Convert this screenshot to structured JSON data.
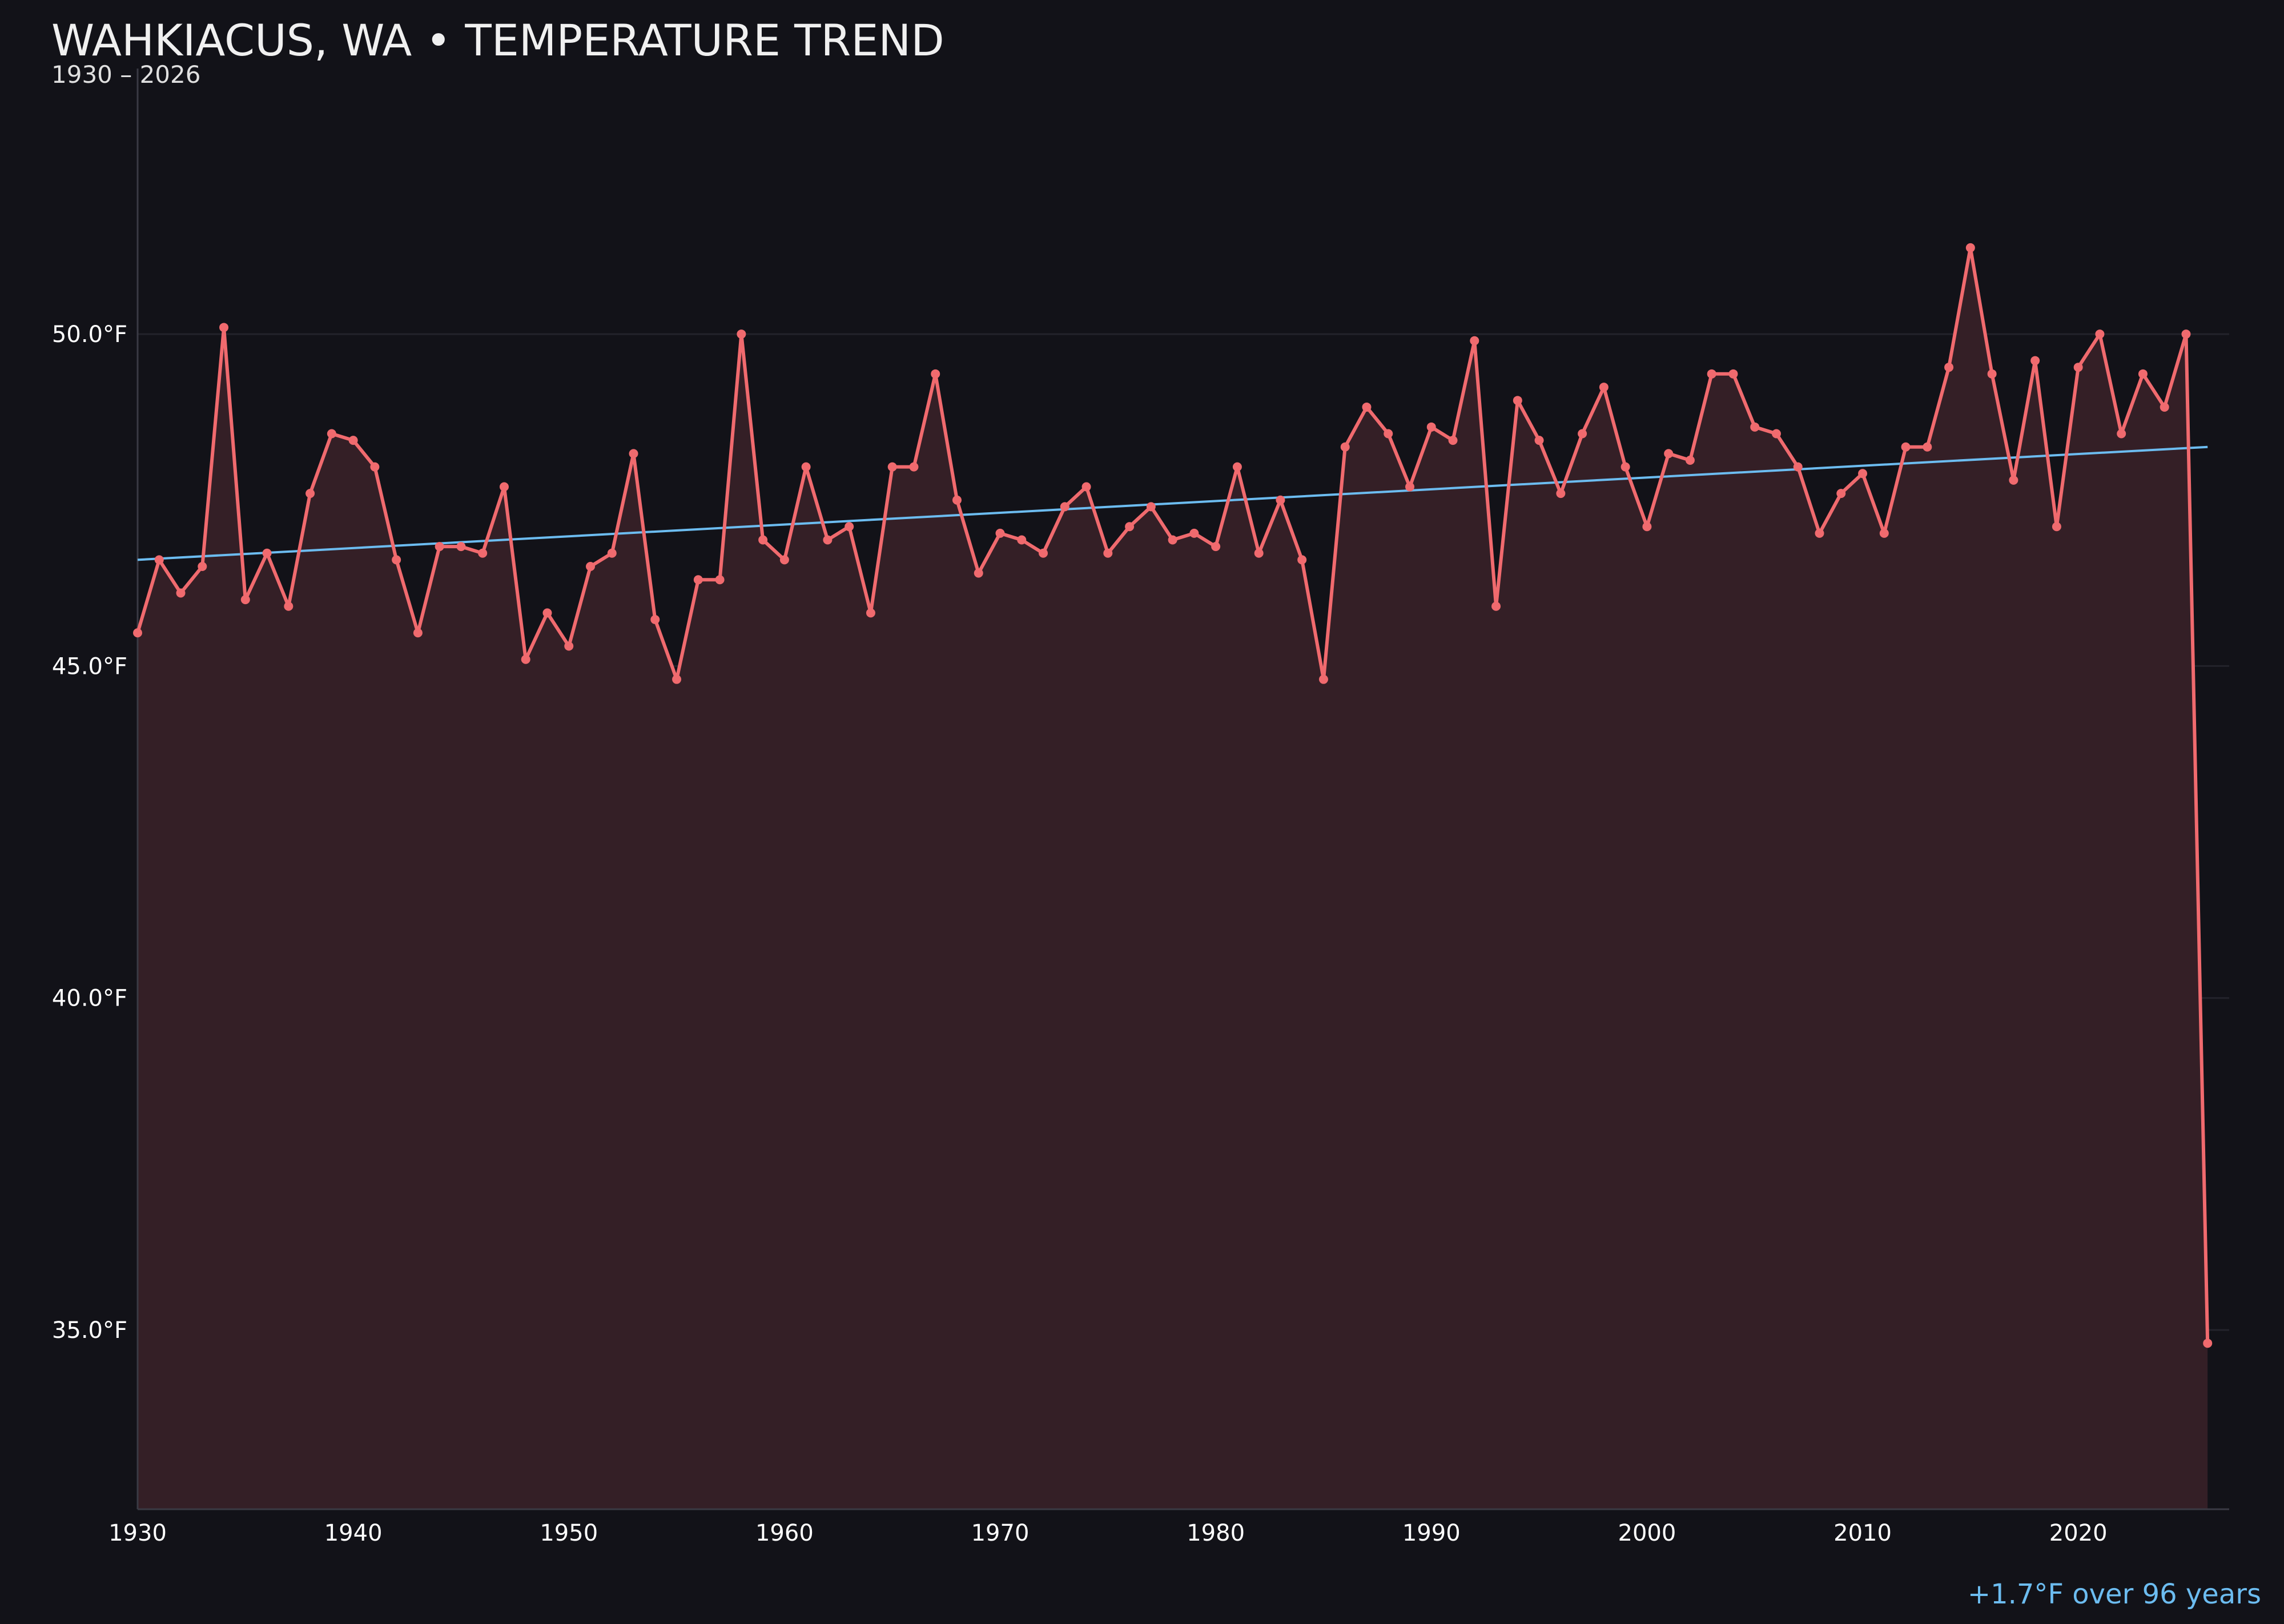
{
  "header": {
    "title": "WAHKIACUS, WA • TEMPERATURE TREND",
    "subtitle": "1930 – 2026"
  },
  "footer": {
    "trend_note": "+1.7°F over 96 years"
  },
  "colors": {
    "background": "#121218",
    "series_line": "#f06a6e",
    "area_fill": "#341f26",
    "trend_line": "#6cbcf0",
    "grid": "#23232b",
    "axis": "#3a3a44"
  },
  "chart_data": {
    "type": "line",
    "title": "WAHKIACUS, WA • TEMPERATURE TREND",
    "subtitle": "1930 – 2026",
    "xlabel": "",
    "ylabel": "",
    "xlim": [
      1930,
      2027
    ],
    "ylim": [
      32.3,
      54.0
    ],
    "x_ticks": [
      1930,
      1940,
      1950,
      1960,
      1970,
      1980,
      1990,
      2000,
      2010,
      2020
    ],
    "y_ticks": [
      {
        "value": 35,
        "label": "35.0°F"
      },
      {
        "value": 40,
        "label": "40.0°F"
      },
      {
        "value": 45,
        "label": "45.0°F"
      },
      {
        "value": 50,
        "label": "50.0°F"
      }
    ],
    "grid": "horizontal",
    "area_fill": true,
    "series": [
      {
        "x": [
          1930,
          1931,
          1932,
          1933,
          1934,
          1935,
          1936,
          1937,
          1938,
          1939,
          1940,
          1941,
          1942,
          1943,
          1944,
          1945,
          1946,
          1947,
          1948,
          1949,
          1950,
          1951,
          1952,
          1953,
          1954,
          1955,
          1956,
          1957,
          1958,
          1959,
          1960,
          1961,
          1962,
          1963,
          1964,
          1965,
          1966,
          1967,
          1968,
          1969,
          1970,
          1971,
          1972,
          1973,
          1974,
          1975,
          1976,
          1977,
          1978,
          1979,
          1980,
          1981,
          1982,
          1983,
          1984,
          1985,
          1986,
          1987,
          1988,
          1989,
          1990,
          1991,
          1992,
          1993,
          1994,
          1995,
          1996,
          1997,
          1998,
          1999,
          2000,
          2001,
          2002,
          2003,
          2004,
          2005,
          2006,
          2007,
          2008,
          2009,
          2010,
          2011,
          2012,
          2013,
          2014,
          2015,
          2016,
          2017,
          2018,
          2019,
          2020,
          2021,
          2022,
          2023,
          2024,
          2025,
          2026
        ],
        "values": [
          45.5,
          46.6,
          46.1,
          46.5,
          50.1,
          46.0,
          46.7,
          45.9,
          47.6,
          48.5,
          48.4,
          48.0,
          46.6,
          45.5,
          46.8,
          46.8,
          46.7,
          47.7,
          45.1,
          45.8,
          45.3,
          46.5,
          46.7,
          48.2,
          45.7,
          44.8,
          46.3,
          46.3,
          50.0,
          46.9,
          46.6,
          48.0,
          46.9,
          47.1,
          45.8,
          48.0,
          48.0,
          49.4,
          47.5,
          46.4,
          47.0,
          46.9,
          46.7,
          47.4,
          47.7,
          46.7,
          47.1,
          47.4,
          46.9,
          47.0,
          46.8,
          48.0,
          46.7,
          47.5,
          46.6,
          44.8,
          48.3,
          48.9,
          48.5,
          47.7,
          48.6,
          48.4,
          49.9,
          45.9,
          49.0,
          48.4,
          47.6,
          48.5,
          49.2,
          48.0,
          47.1,
          48.2,
          48.1,
          49.4,
          49.4,
          48.6,
          48.5,
          48.0,
          47.0,
          47.6,
          47.9,
          47.0,
          48.3,
          48.3,
          49.5,
          51.3,
          49.4,
          47.8,
          49.6,
          47.1,
          49.5,
          50.0,
          48.5,
          49.4,
          48.9,
          50.0,
          34.8
        ]
      },
      {
        "name": "trend",
        "x": [
          1930,
          2026
        ],
        "values": [
          46.6,
          48.3
        ]
      }
    ],
    "annotations": [
      "+1.7°F over 96 years"
    ]
  }
}
